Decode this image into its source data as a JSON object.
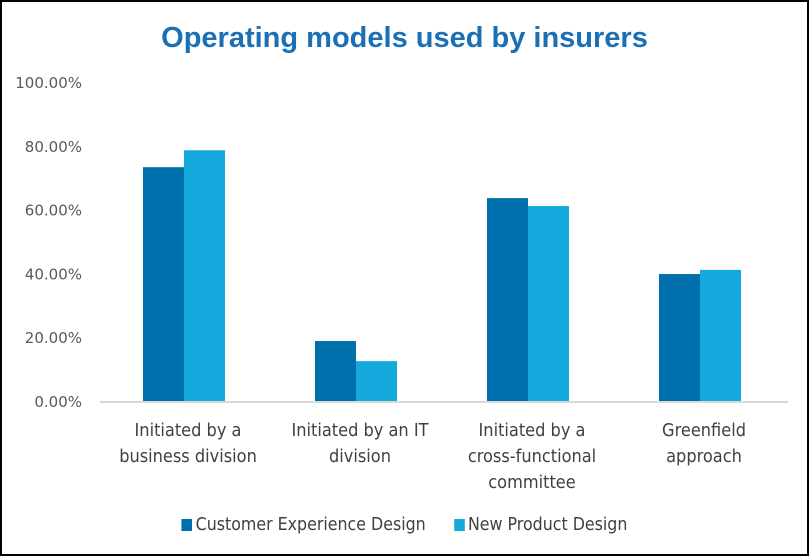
{
  "chart_data": {
    "type": "bar",
    "title": "Operating models used by insurers",
    "xlabel": "",
    "ylabel": "",
    "categories": [
      [
        "Initiated by a",
        "business division"
      ],
      [
        "Initiated by an IT",
        "division"
      ],
      [
        "Initiated by a",
        "cross-functional",
        "committee"
      ],
      [
        "Greenfield",
        "approach"
      ]
    ],
    "series": [
      {
        "name": "Customer Experience Design",
        "color": "#0070ad",
        "values": [
          0.733,
          0.188,
          0.636,
          0.398
        ]
      },
      {
        "name": "New Product Design",
        "color": "#14a9dc",
        "values": [
          0.786,
          0.125,
          0.611,
          0.411
        ]
      }
    ],
    "ylim": [
      0,
      1.0
    ],
    "yticks": [
      0,
      0.2,
      0.4,
      0.6,
      0.8,
      1.0
    ],
    "ytick_labels": [
      "0.00%",
      "20.00%",
      "40.00%",
      "60.00%",
      "80.00%",
      "100.00%"
    ],
    "grid": false,
    "legend": "bottom"
  }
}
